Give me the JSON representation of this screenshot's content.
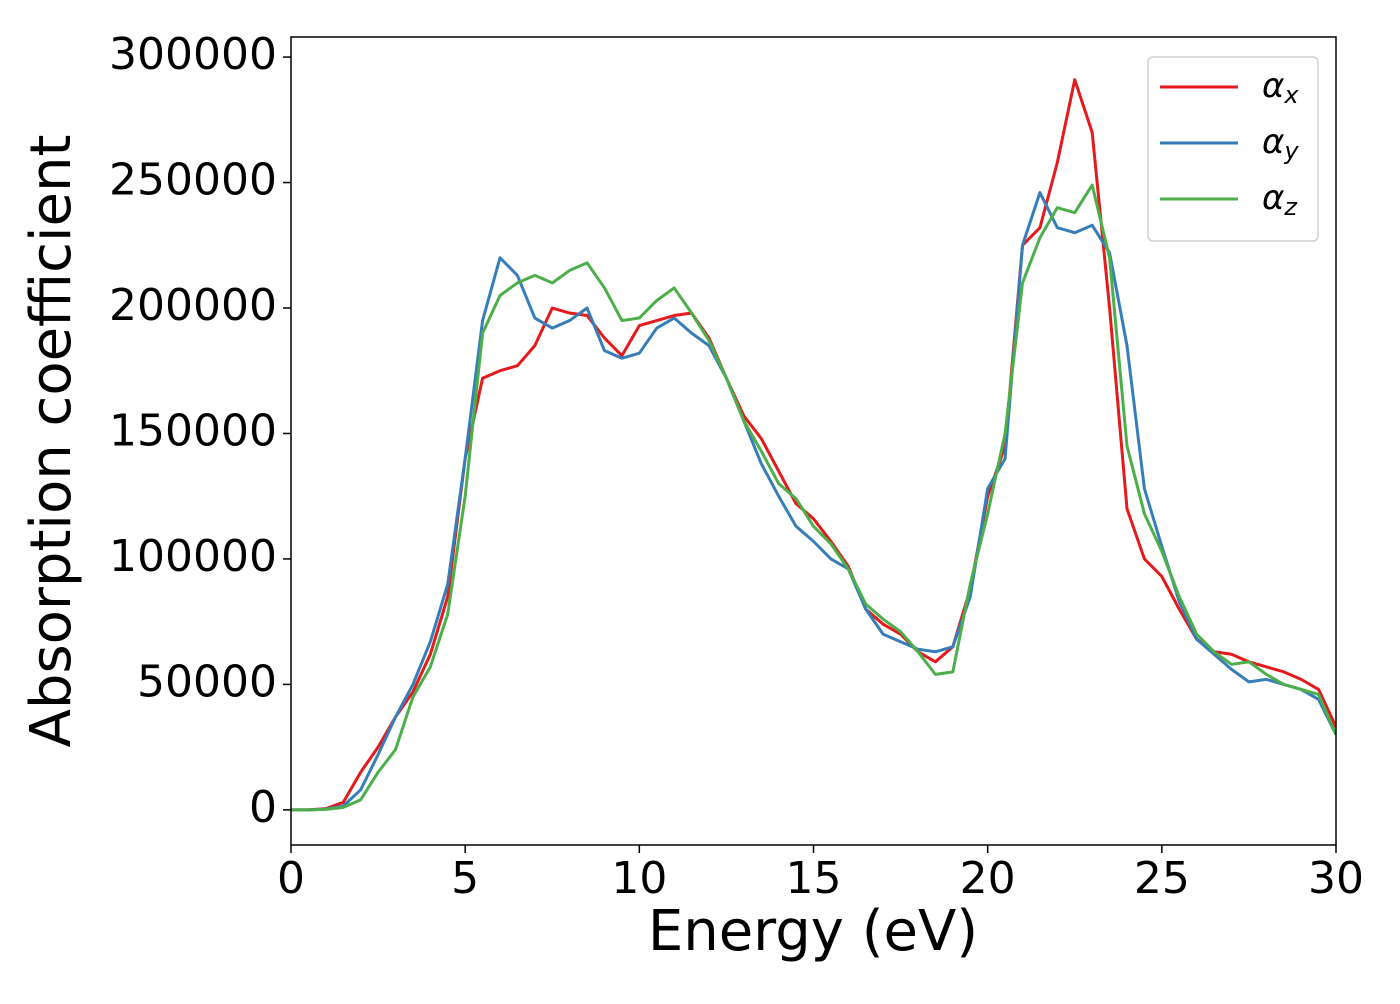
{
  "chart_data": {
    "type": "line",
    "xlabel": "Energy (eV)",
    "ylabel": "Absorption coefficient",
    "x": [
      0,
      0.5,
      1,
      1.5,
      2,
      2.5,
      3,
      3.5,
      4,
      4.5,
      5,
      5.5,
      6,
      6.5,
      7,
      7.5,
      8,
      8.5,
      9,
      9.5,
      10,
      10.5,
      11,
      11.5,
      12,
      12.5,
      13,
      13.5,
      14,
      14.5,
      15,
      15.5,
      16,
      16.5,
      17,
      17.5,
      18,
      18.5,
      19,
      19.5,
      20,
      20.5,
      21,
      21.5,
      22,
      22.5,
      23,
      23.5,
      24,
      24.5,
      25,
      25.5,
      26,
      26.5,
      27,
      27.5,
      28,
      28.5,
      29,
      29.5,
      30
    ],
    "series": [
      {
        "name": "αx",
        "color": "#e41a1c",
        "values": [
          0,
          0,
          500,
          3000,
          15000,
          25000,
          37000,
          47000,
          62000,
          85000,
          140000,
          172000,
          175000,
          177000,
          185000,
          200000,
          198000,
          197000,
          188000,
          181000,
          193000,
          195000,
          197000,
          198000,
          188000,
          172000,
          157000,
          148000,
          135000,
          122000,
          116000,
          107000,
          97000,
          80000,
          74000,
          70000,
          63000,
          59000,
          65000,
          88000,
          125000,
          145000,
          225000,
          232000,
          258000,
          291000,
          270000,
          200000,
          120000,
          100000,
          93000,
          80000,
          68000,
          63000,
          62000,
          59000,
          57000,
          55000,
          52000,
          48000,
          33000
        ]
      },
      {
        "name": "αy",
        "color": "#377eb8",
        "values": [
          0,
          0,
          300,
          1500,
          8000,
          22000,
          37000,
          50000,
          67000,
          90000,
          140000,
          195000,
          220000,
          213000,
          196000,
          192000,
          195000,
          200000,
          183000,
          180000,
          182000,
          192000,
          196000,
          190000,
          185000,
          172000,
          155000,
          138000,
          125000,
          113000,
          107000,
          100000,
          96000,
          80000,
          70000,
          67000,
          64000,
          63000,
          65000,
          85000,
          128000,
          140000,
          225000,
          246000,
          232000,
          230000,
          233000,
          222000,
          185000,
          128000,
          105000,
          83000,
          68000,
          62000,
          56000,
          51000,
          52000,
          50000,
          48000,
          44000,
          30000
        ]
      },
      {
        "name": "αz",
        "color": "#4daf4a",
        "values": [
          0,
          0,
          200,
          1000,
          4000,
          15000,
          24000,
          45000,
          57000,
          78000,
          125000,
          190000,
          205000,
          210000,
          213000,
          210000,
          215000,
          218000,
          208000,
          195000,
          196000,
          203000,
          208000,
          198000,
          187000,
          172000,
          155000,
          143000,
          130000,
          124000,
          113000,
          106000,
          96000,
          82000,
          76000,
          71000,
          63000,
          54000,
          55000,
          90000,
          118000,
          150000,
          210000,
          228000,
          240000,
          238000,
          249000,
          220000,
          145000,
          118000,
          103000,
          85000,
          70000,
          63000,
          58000,
          59000,
          54000,
          50000,
          48000,
          46000,
          30000
        ]
      }
    ],
    "xlim": [
      0,
      30
    ],
    "xticks": [
      0,
      5,
      10,
      15,
      20,
      25,
      30
    ],
    "ylim": [
      -14000,
      308000
    ],
    "yticks": [
      0,
      50000,
      100000,
      150000,
      200000,
      250000,
      300000
    ],
    "legend": "upper right"
  }
}
